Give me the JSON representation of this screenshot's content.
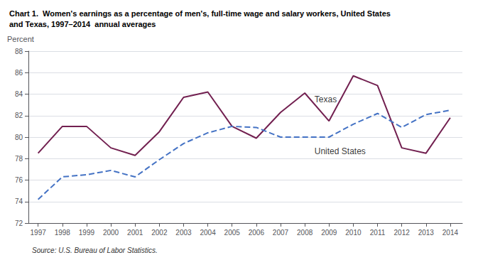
{
  "chart_data": {
    "type": "line",
    "title": "Chart 1.  Women's earnings as a percentage of men's, full-time wage and salary workers, United States\nand Texas, 1997–2014  annual averages",
    "y_label": "Percent",
    "source": "Source: U.S. Bureau of Labor Statistics.",
    "x": [
      1997,
      1998,
      1999,
      2000,
      2001,
      2002,
      2003,
      2004,
      2005,
      2006,
      2007,
      2008,
      2009,
      2010,
      2011,
      2012,
      2013,
      2014
    ],
    "series": [
      {
        "name": "Texas",
        "color": "#722050",
        "line_style": "solid",
        "values": [
          78.5,
          81.0,
          81.0,
          79.0,
          78.3,
          80.5,
          83.7,
          84.2,
          81.0,
          79.9,
          82.3,
          84.1,
          81.5,
          85.7,
          84.8,
          79.0,
          78.5,
          81.8
        ]
      },
      {
        "name": "United States",
        "color": "#4472C4",
        "line_style": "dashed",
        "values": [
          74.2,
          76.3,
          76.5,
          76.9,
          76.3,
          77.9,
          79.4,
          80.4,
          81.0,
          80.9,
          80.0,
          80.0,
          80.0,
          81.2,
          82.2,
          80.9,
          82.1,
          82.5
        ]
      }
    ],
    "annotations": [
      {
        "text": "Texas",
        "x": 2008.4,
        "y": 83.5
      },
      {
        "text": "United States",
        "x": 2008.4,
        "y": 78.7
      }
    ],
    "xlim": [
      1996.6,
      2014.5
    ],
    "xticks": [
      1997,
      1998,
      1999,
      2000,
      2001,
      2002,
      2003,
      2004,
      2005,
      2006,
      2007,
      2008,
      2009,
      2010,
      2011,
      2012,
      2013,
      2014
    ],
    "ylim": [
      72,
      88
    ],
    "yticks": [
      72,
      74,
      76,
      78,
      80,
      82,
      84,
      86,
      88
    ],
    "grid": true
  }
}
